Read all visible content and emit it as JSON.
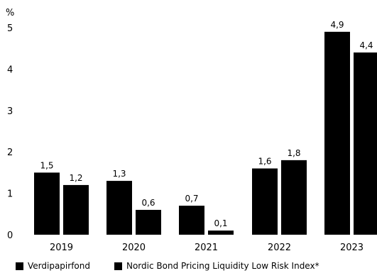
{
  "chart_data": {
    "type": "bar",
    "ylabel": "%",
    "ylim": [
      0,
      5
    ],
    "yticks": [
      "0",
      "1",
      "2",
      "3",
      "4",
      "5"
    ],
    "categories": [
      "2019",
      "2020",
      "2021",
      "2022",
      "2023"
    ],
    "series": [
      {
        "name": "Verdipapirfond",
        "values": [
          1.5,
          1.3,
          0.7,
          1.6,
          4.9
        ],
        "labels": [
          "1,5",
          "1,3",
          "0,7",
          "1,6",
          "4,9"
        ],
        "color": "#000000"
      },
      {
        "name": "Nordic Bond Pricing Liquidity Low Risk Index*",
        "values": [
          1.2,
          0.6,
          0.1,
          1.8,
          4.4
        ],
        "labels": [
          "1,2",
          "0,6",
          "0,1",
          "1,8",
          "4,4"
        ],
        "color": "#000000"
      }
    ],
    "grid": false,
    "legend_position": "bottom-left"
  }
}
